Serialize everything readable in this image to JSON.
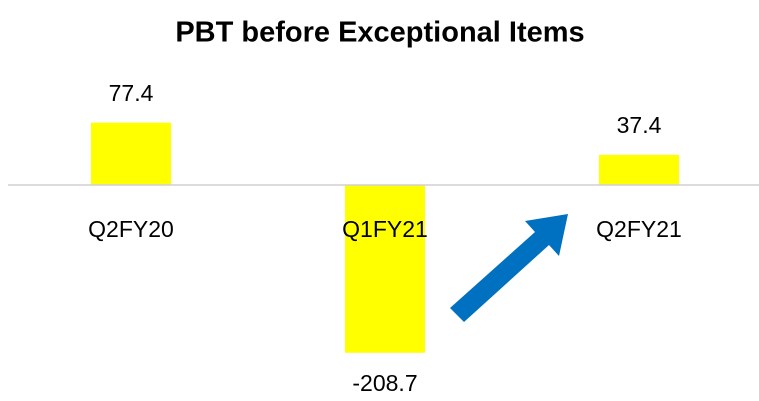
{
  "chart_data": {
    "type": "bar",
    "title": "PBT before Exceptional Items",
    "categories": [
      "Q2FY20",
      "Q1FY21",
      "Q2FY21"
    ],
    "values": [
      77.4,
      -208.7,
      37.4
    ],
    "color": "#ffff00",
    "ylim": [
      -250,
      100
    ]
  }
}
